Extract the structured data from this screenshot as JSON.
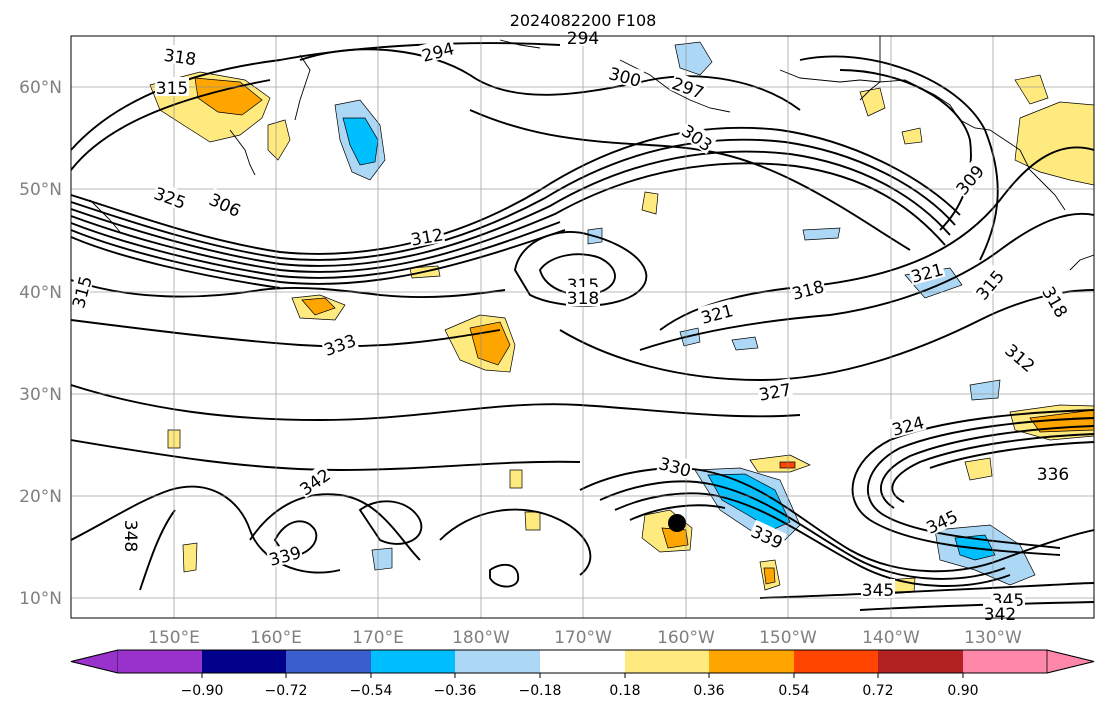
{
  "title": "2024082200 F108",
  "colors": {
    "contour": "#000000",
    "grid": "#8c8c8c",
    "axis_label": "#808080",
    "coast": "#000000"
  },
  "axes": {
    "lon_ticks": [
      "150°E",
      "160°E",
      "170°E",
      "180°W",
      "170°W",
      "160°W",
      "150°W",
      "140°W",
      "130°W"
    ],
    "lat_ticks": [
      "60°N",
      "50°N",
      "40°N",
      "30°N",
      "20°N",
      "10°N"
    ]
  },
  "colorbar": {
    "ticks": [
      "−0.90",
      "−0.72",
      "−0.54",
      "−0.36",
      "−0.18",
      "0.18",
      "0.36",
      "0.54",
      "0.72",
      "0.90"
    ],
    "colors": [
      "#9932cc",
      "#00008b",
      "#3a5fcd",
      "#00bfff",
      "#add8f5",
      "#ffffff",
      "#ffea80",
      "#ffa500",
      "#ff4500",
      "#b22222",
      "#ff88aa"
    ]
  },
  "contour_labels": [
    {
      "text": "318"
    },
    {
      "text": "315"
    },
    {
      "text": "294"
    },
    {
      "text": "294"
    },
    {
      "text": "300"
    },
    {
      "text": "297"
    },
    {
      "text": "303"
    },
    {
      "text": "325"
    },
    {
      "text": "306"
    },
    {
      "text": "312"
    },
    {
      "text": "309"
    },
    {
      "text": "315"
    },
    {
      "text": "318"
    },
    {
      "text": "318"
    },
    {
      "text": "321"
    },
    {
      "text": "321"
    },
    {
      "text": "315"
    },
    {
      "text": "318"
    },
    {
      "text": "312"
    },
    {
      "text": "333"
    },
    {
      "text": "327"
    },
    {
      "text": "324"
    },
    {
      "text": "330"
    },
    {
      "text": "336"
    },
    {
      "text": "342"
    },
    {
      "text": "345"
    },
    {
      "text": "339"
    },
    {
      "text": "339"
    },
    {
      "text": "348"
    },
    {
      "text": "345"
    },
    {
      "text": "345"
    },
    {
      "text": "342"
    },
    {
      "text": "315"
    }
  ],
  "marker": {
    "type": "storm-center"
  }
}
